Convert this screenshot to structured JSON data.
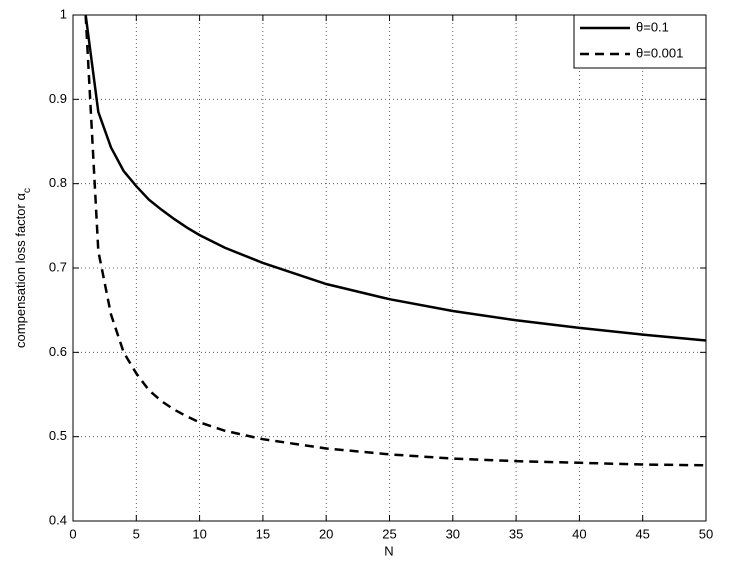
{
  "chart_data": {
    "type": "line",
    "xlabel": "N",
    "ylabel": "compensation loss factor α",
    "ylabel_subscript": "c",
    "x": [
      1,
      2,
      3,
      4,
      5,
      6,
      7,
      8,
      9,
      10,
      12,
      15,
      20,
      25,
      30,
      35,
      40,
      45,
      50
    ],
    "series": [
      {
        "name": "θ=0.1",
        "color": "#000000",
        "line_style": "solid",
        "values": [
          1.0,
          0.885,
          0.843,
          0.815,
          0.797,
          0.781,
          0.769,
          0.758,
          0.748,
          0.739,
          0.724,
          0.706,
          0.681,
          0.663,
          0.649,
          0.638,
          0.629,
          0.621,
          0.614
        ]
      },
      {
        "name": "θ=0.001",
        "color": "#000000",
        "line_style": "dashed",
        "values": [
          1.0,
          0.72,
          0.645,
          0.6,
          0.575,
          0.555,
          0.542,
          0.532,
          0.524,
          0.517,
          0.507,
          0.497,
          0.486,
          0.479,
          0.474,
          0.471,
          0.469,
          0.467,
          0.466
        ]
      }
    ],
    "xlim": [
      0,
      50
    ],
    "xticks": [
      0,
      5,
      10,
      15,
      20,
      25,
      30,
      35,
      40,
      45,
      50
    ],
    "ylim": [
      0.4,
      1
    ],
    "yticks": [
      0.4,
      0.5,
      0.6,
      0.7,
      0.8,
      0.9,
      1
    ],
    "grid": true,
    "legend": "top-right"
  }
}
